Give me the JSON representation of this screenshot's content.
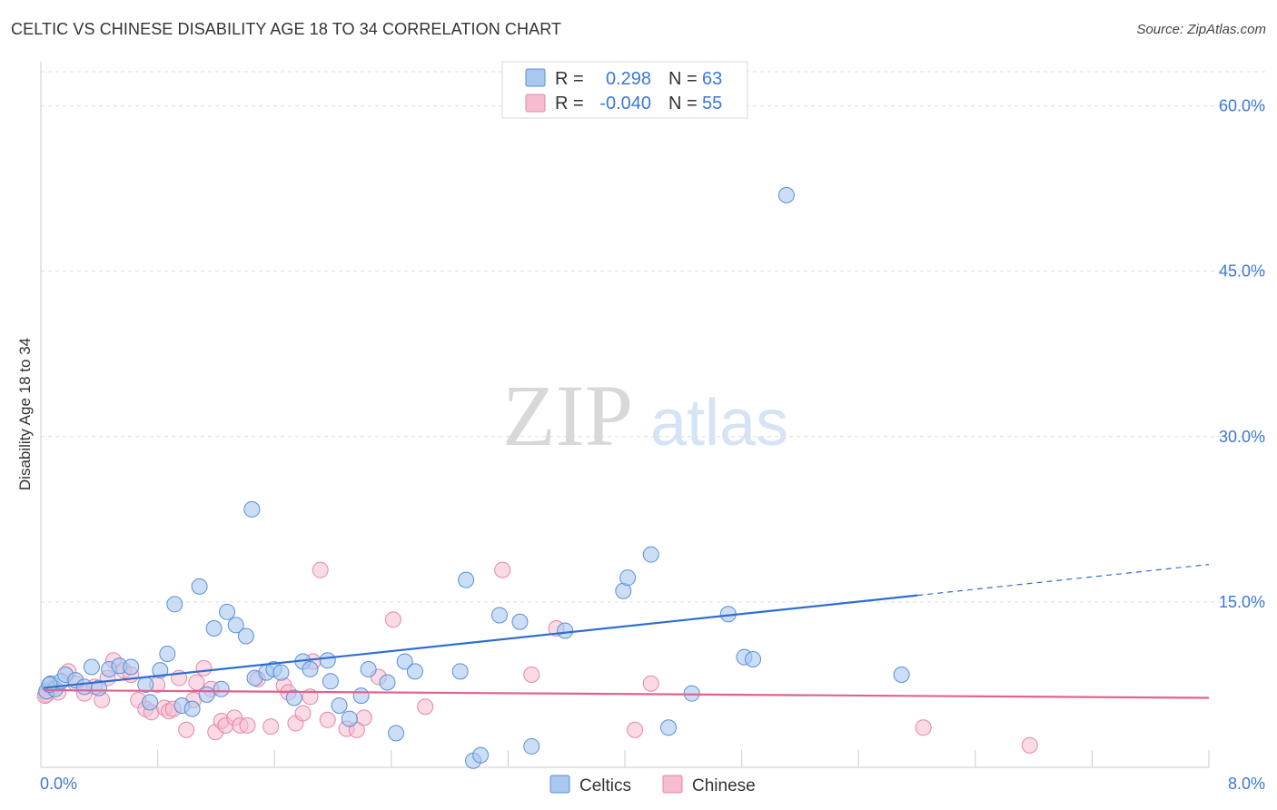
{
  "header": {
    "title": "CELTIC VS CHINESE DISABILITY AGE 18 TO 34 CORRELATION CHART",
    "source": "Source: ZipAtlas.com"
  },
  "watermark": {
    "zip": "ZIP",
    "atlas": "atlas"
  },
  "colors": {
    "celtics_fill": "#a9c8f0",
    "celtics_stroke": "#5a8fd6",
    "celtics_line": "#2f6fcf",
    "chinese_fill": "#f6bcd0",
    "chinese_stroke": "#e686a8",
    "chinese_line": "#e0638f",
    "tick_text": "#3b78d4"
  },
  "legend_top": {
    "celtics": {
      "r_label": "R =",
      "r_value": "0.298",
      "n_label": "N =",
      "n_value": "63"
    },
    "chinese": {
      "r_label": "R =",
      "r_value": "-0.040",
      "n_label": "N =",
      "n_value": "55"
    }
  },
  "chart_data": {
    "type": "scatter",
    "title": "CELTIC VS CHINESE DISABILITY AGE 18 TO 34 CORRELATION CHART",
    "xlabel": "",
    "ylabel": "Disability Age 18 to 34",
    "xlim": [
      0,
      8
    ],
    "ylim": [
      0,
      64
    ],
    "x_tick_labels": {
      "min": "0.0%",
      "max": "8.0%"
    },
    "y_ticks": [
      {
        "value": 15,
        "label": "15.0%"
      },
      {
        "value": 30,
        "label": "30.0%"
      },
      {
        "value": 45,
        "label": "45.0%"
      },
      {
        "value": 60,
        "label": "60.0%"
      }
    ],
    "legend": [
      "Celtics",
      "Chinese"
    ],
    "series": [
      {
        "name": "Celtics",
        "r": 0.298,
        "n": 63,
        "trend": {
          "x0": 0.0,
          "y0": 7.2,
          "x1": 6.0,
          "y1": 15.6,
          "dash_to_x": 8.0,
          "dash_to_y": 18.4
        },
        "points": [
          [
            0.02,
            6.9
          ],
          [
            0.05,
            7.6
          ],
          [
            0.08,
            7.1
          ],
          [
            0.12,
            7.8
          ],
          [
            0.15,
            8.4
          ],
          [
            0.22,
            7.9
          ],
          [
            0.28,
            7.3
          ],
          [
            0.33,
            9.1
          ],
          [
            0.38,
            7.2
          ],
          [
            0.45,
            8.9
          ],
          [
            0.52,
            9.2
          ],
          [
            0.6,
            9.1
          ],
          [
            0.7,
            7.5
          ],
          [
            0.73,
            5.9
          ],
          [
            0.8,
            8.8
          ],
          [
            0.85,
            10.3
          ],
          [
            0.9,
            14.8
          ],
          [
            0.95,
            5.6
          ],
          [
            1.02,
            5.3
          ],
          [
            1.07,
            16.4
          ],
          [
            1.12,
            6.6
          ],
          [
            1.17,
            12.6
          ],
          [
            1.22,
            7.1
          ],
          [
            1.26,
            14.1
          ],
          [
            1.32,
            12.9
          ],
          [
            1.39,
            11.9
          ],
          [
            1.43,
            23.4
          ],
          [
            1.45,
            8.1
          ],
          [
            1.53,
            8.6
          ],
          [
            1.58,
            8.9
          ],
          [
            1.63,
            8.6
          ],
          [
            1.72,
            6.3
          ],
          [
            1.78,
            9.6
          ],
          [
            1.83,
            8.9
          ],
          [
            1.95,
            9.7
          ],
          [
            1.97,
            7.8
          ],
          [
            2.03,
            5.6
          ],
          [
            2.1,
            4.4
          ],
          [
            2.18,
            6.5
          ],
          [
            2.23,
            8.9
          ],
          [
            2.36,
            7.7
          ],
          [
            2.42,
            3.1
          ],
          [
            2.48,
            9.6
          ],
          [
            2.55,
            8.7
          ],
          [
            2.86,
            8.7
          ],
          [
            2.9,
            17.0
          ],
          [
            2.95,
            0.6
          ],
          [
            3.0,
            1.1
          ],
          [
            3.13,
            13.8
          ],
          [
            3.27,
            13.2
          ],
          [
            3.35,
            1.9
          ],
          [
            3.58,
            12.4
          ],
          [
            3.98,
            16.0
          ],
          [
            4.01,
            17.2
          ],
          [
            4.17,
            19.3
          ],
          [
            4.29,
            3.6
          ],
          [
            4.45,
            6.7
          ],
          [
            4.7,
            13.9
          ],
          [
            4.81,
            10.0
          ],
          [
            4.87,
            9.8
          ],
          [
            5.1,
            51.9
          ],
          [
            5.89,
            8.4
          ],
          [
            0.04,
            7.5
          ]
        ]
      },
      {
        "name": "Chinese",
        "r": -0.04,
        "n": 55,
        "trend": {
          "x0": 0.0,
          "y0": 7.0,
          "x1": 8.0,
          "y1": 6.3
        },
        "points": [
          [
            0.02,
            6.6
          ],
          [
            0.06,
            7.2
          ],
          [
            0.1,
            6.8
          ],
          [
            0.17,
            8.7
          ],
          [
            0.22,
            7.6
          ],
          [
            0.28,
            6.7
          ],
          [
            0.35,
            7.3
          ],
          [
            0.4,
            6.1
          ],
          [
            0.44,
            8.1
          ],
          [
            0.48,
            9.7
          ],
          [
            0.55,
            8.8
          ],
          [
            0.6,
            8.4
          ],
          [
            0.65,
            6.1
          ],
          [
            0.7,
            5.3
          ],
          [
            0.74,
            5.0
          ],
          [
            0.78,
            7.5
          ],
          [
            0.83,
            5.4
          ],
          [
            0.86,
            5.1
          ],
          [
            0.89,
            5.3
          ],
          [
            0.93,
            8.1
          ],
          [
            0.98,
            3.4
          ],
          [
            1.03,
            6.1
          ],
          [
            1.05,
            7.7
          ],
          [
            1.1,
            9.0
          ],
          [
            1.15,
            7.1
          ],
          [
            1.18,
            3.2
          ],
          [
            1.22,
            4.2
          ],
          [
            1.25,
            3.8
          ],
          [
            1.31,
            4.5
          ],
          [
            1.35,
            3.8
          ],
          [
            1.4,
            3.8
          ],
          [
            1.47,
            8.0
          ],
          [
            1.56,
            3.7
          ],
          [
            1.65,
            7.4
          ],
          [
            1.68,
            6.8
          ],
          [
            1.73,
            4.0
          ],
          [
            1.78,
            4.9
          ],
          [
            1.83,
            6.4
          ],
          [
            1.85,
            9.6
          ],
          [
            1.9,
            17.9
          ],
          [
            1.95,
            4.3
          ],
          [
            2.08,
            3.5
          ],
          [
            2.15,
            3.4
          ],
          [
            2.2,
            4.5
          ],
          [
            2.3,
            8.2
          ],
          [
            2.4,
            13.4
          ],
          [
            2.62,
            5.5
          ],
          [
            3.15,
            17.9
          ],
          [
            3.35,
            8.4
          ],
          [
            3.52,
            12.6
          ],
          [
            4.06,
            3.4
          ],
          [
            4.17,
            7.6
          ],
          [
            6.04,
            3.6
          ],
          [
            6.77,
            2.0
          ],
          [
            0.01,
            6.5
          ]
        ]
      }
    ]
  },
  "legend_bottom": {
    "celtics": "Celtics",
    "chinese": "Chinese"
  }
}
